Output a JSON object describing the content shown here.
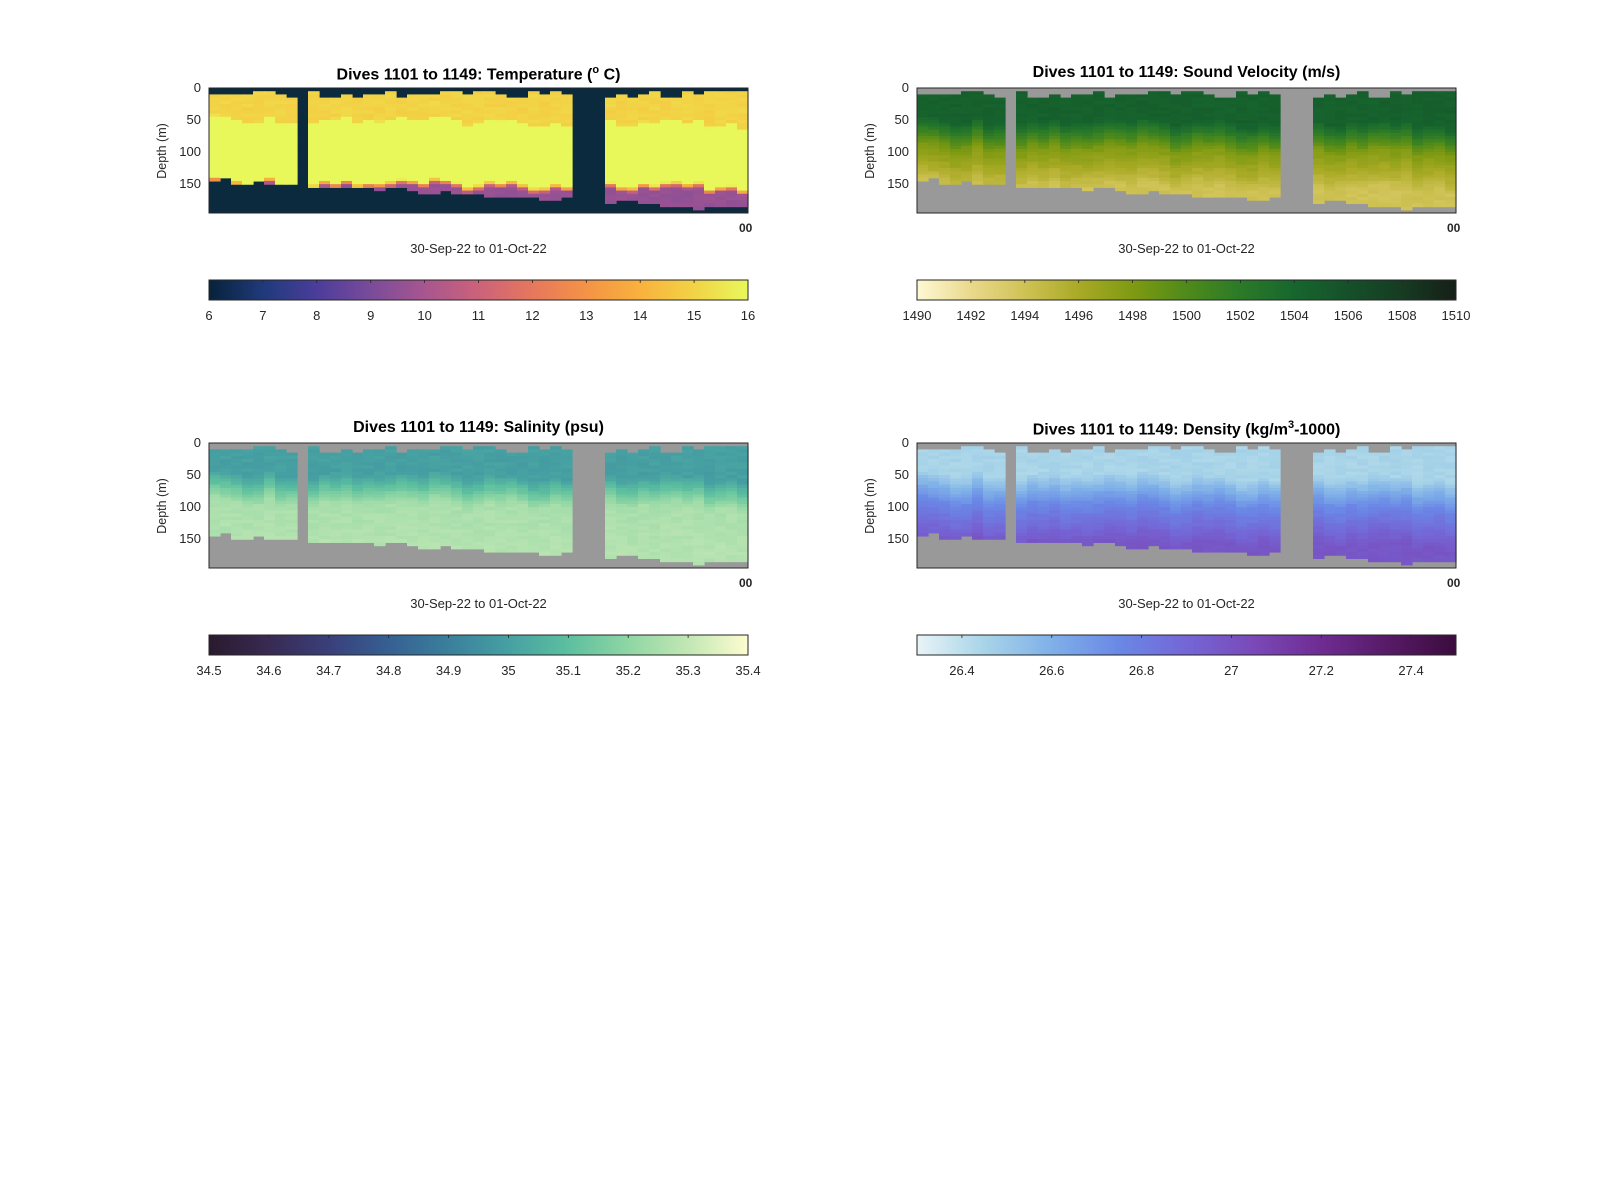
{
  "figure": {
    "xlabel": "30-Sep-22 to 01-Oct-22",
    "ylabel": "Depth (m)",
    "x_end_tick": "00",
    "missing_color": "#999999"
  },
  "chart_data": [
    {
      "type": "heatmap",
      "title": "Dives 1101 to 1149: Temperature (° C)",
      "title_parts": {
        "pre": "Dives 1101 to 1149: Temperature (",
        "sup": "o",
        "post": " C)"
      },
      "xlabel": "30-Sep-22 to 01-Oct-22",
      "ylabel": "Depth (m)",
      "yticks": [
        0,
        50,
        100,
        150
      ],
      "ylim": [
        0,
        195
      ],
      "dives": [
        1101,
        1149
      ],
      "missing_color": "#0b2a3d",
      "colorbar": {
        "min": 6,
        "max": 16,
        "ticks": [
          6,
          7,
          8,
          9,
          10,
          11,
          12,
          13,
          14,
          15,
          16
        ],
        "colors": [
          "#07223a",
          "#1f3a7a",
          "#4b3d9a",
          "#7a4b9a",
          "#a7568f",
          "#cb627a",
          "#e6775d",
          "#f49346",
          "#f8b23d",
          "#f2d346",
          "#e8f85a"
        ]
      },
      "layers": {
        "top": 15,
        "thermocline": 55,
        "deep": 9.6
      }
    },
    {
      "type": "heatmap",
      "title": "Dives 1101 to 1149: Sound Velocity (m/s)",
      "title_parts": {
        "pre": "Dives 1101 to 1149: Sound Velocity (m/s)",
        "sup": "",
        "post": ""
      },
      "xlabel": "30-Sep-22 to 01-Oct-22",
      "ylabel": "Depth (m)",
      "yticks": [
        0,
        50,
        100,
        150
      ],
      "ylim": [
        0,
        195
      ],
      "dives": [
        1101,
        1149
      ],
      "missing_color": "#999999",
      "colorbar": {
        "min": 1490,
        "max": 1510,
        "ticks": [
          1490,
          1492,
          1494,
          1496,
          1498,
          1500,
          1502,
          1504,
          1506,
          1508,
          1510
        ],
        "colors": [
          "#fdf9d4",
          "#ead98c",
          "#cfc255",
          "#a9aa25",
          "#7f9a12",
          "#4f8a1a",
          "#2b7a28",
          "#17662e",
          "#15502a",
          "#173b22",
          "#151f17"
        ]
      },
      "layers": {
        "top": 1504.5,
        "thermocline": 1498,
        "deep": 1494
      }
    },
    {
      "type": "heatmap",
      "title": "Dives 1101 to 1149: Salinity (psu)",
      "title_parts": {
        "pre": "Dives 1101 to 1149: Salinity (psu)",
        "sup": "",
        "post": ""
      },
      "xlabel": "30-Sep-22 to 01-Oct-22",
      "ylabel": "Depth (m)",
      "yticks": [
        0,
        50,
        100,
        150
      ],
      "ylim": [
        0,
        195
      ],
      "dives": [
        1101,
        1149
      ],
      "missing_color": "#999999",
      "colorbar": {
        "min": 34.5,
        "max": 35.4,
        "ticks": [
          34.5,
          34.6,
          34.7,
          34.8,
          34.9,
          35,
          35.1,
          35.2,
          35.3,
          35.4
        ],
        "colors": [
          "#2a1a2e",
          "#382a52",
          "#3a3f7a",
          "#366092",
          "#3a7f9c",
          "#46a0a2",
          "#5cbf9f",
          "#8fd6a4",
          "#c2e7b4",
          "#fdfcd0"
        ]
      },
      "layers": {
        "top": 35.0,
        "thermocline": 35.25,
        "deep": 35.27
      }
    },
    {
      "type": "heatmap",
      "title": "Dives 1101 to 1149: Density (kg/m³-1000)",
      "title_parts": {
        "pre": "Dives 1101 to 1149: Density (kg/m",
        "sup": "3",
        "post": "-1000)"
      },
      "xlabel": "30-Sep-22 to 01-Oct-22",
      "ylabel": "Depth (m)",
      "yticks": [
        0,
        50,
        100,
        150
      ],
      "ylim": [
        0,
        195
      ],
      "dives": [
        1101,
        1149
      ],
      "missing_color": "#999999",
      "colorbar": {
        "min": 26.3,
        "max": 27.5,
        "ticks": [
          26.4,
          26.6,
          26.8,
          27,
          27.2,
          27.4
        ],
        "colors": [
          "#e8f4f6",
          "#a8d4e8",
          "#7fb0e8",
          "#6a88e6",
          "#7466d6",
          "#7a49b8",
          "#6e2c92",
          "#561a66",
          "#3b0c3d"
        ]
      },
      "layers": {
        "top": 26.45,
        "thermocline": 26.75,
        "deep": 26.98
      }
    }
  ]
}
